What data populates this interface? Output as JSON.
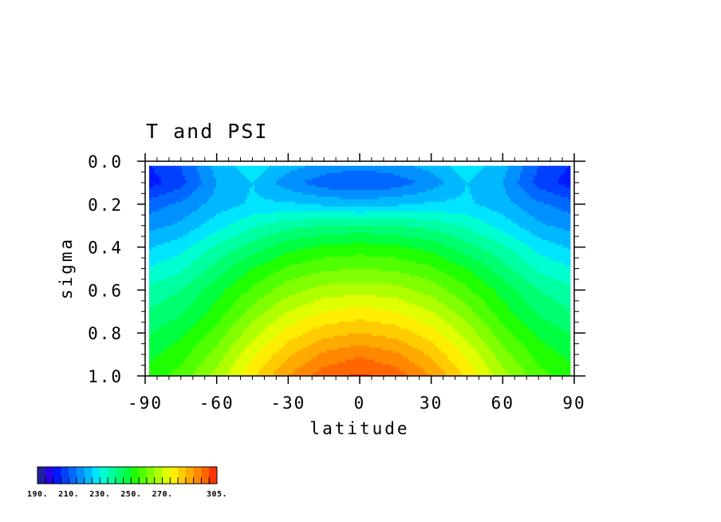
{
  "chart_data": {
    "type": "heatmap",
    "title": "T and PSI",
    "xlabel": "latitude",
    "ylabel": "sigma",
    "x": [
      -90,
      -75,
      -60,
      -45,
      -30,
      -15,
      0,
      15,
      30,
      45,
      60,
      75,
      90
    ],
    "y": [
      0.025,
      0.1,
      0.2,
      0.3,
      0.4,
      0.5,
      0.6,
      0.7,
      0.8,
      0.9,
      1.0
    ],
    "xlim": [
      -90,
      90
    ],
    "ylim": [
      0.0,
      1.0
    ],
    "y_inverted": true,
    "xticks": [
      "-90",
      "-60",
      "-30",
      "0",
      "30",
      "60",
      "90"
    ],
    "yticks": [
      "0.0",
      "0.2",
      "0.4",
      "0.6",
      "0.8",
      "1.0"
    ],
    "z": [
      [
        204,
        210,
        222,
        228,
        222,
        218,
        216,
        218,
        222,
        228,
        222,
        210,
        204
      ],
      [
        202,
        208,
        220,
        225,
        217,
        212,
        210,
        212,
        217,
        225,
        220,
        208,
        202
      ],
      [
        212,
        216,
        222,
        226,
        226,
        224,
        223,
        224,
        226,
        226,
        222,
        216,
        212
      ],
      [
        218,
        221,
        228,
        234,
        238,
        240,
        241,
        240,
        238,
        234,
        228,
        221,
        218
      ],
      [
        224,
        228,
        236,
        242,
        248,
        251,
        252,
        251,
        248,
        242,
        236,
        228,
        224
      ],
      [
        230,
        234,
        242,
        250,
        256,
        259,
        260,
        259,
        256,
        250,
        242,
        234,
        230
      ],
      [
        236,
        240,
        248,
        256,
        263,
        267,
        268,
        267,
        263,
        256,
        248,
        240,
        236
      ],
      [
        240,
        244,
        252,
        262,
        270,
        275,
        277,
        275,
        270,
        262,
        252,
        244,
        240
      ],
      [
        244,
        249,
        257,
        268,
        277,
        283,
        285,
        283,
        277,
        268,
        257,
        249,
        244
      ],
      [
        248,
        253,
        262,
        274,
        284,
        291,
        294,
        291,
        284,
        274,
        262,
        253,
        248
      ],
      [
        252,
        257,
        267,
        279,
        290,
        298,
        301,
        298,
        290,
        279,
        267,
        257,
        252
      ]
    ],
    "contour_levels": [
      190,
      195,
      200,
      205,
      210,
      215,
      220,
      225,
      230,
      235,
      240,
      245,
      250,
      255,
      260,
      265,
      270,
      275,
      280,
      285,
      290,
      295,
      300,
      305
    ],
    "colorbar": {
      "labels": [
        "190.",
        "210.",
        "230.",
        "250.",
        "270.",
        "305."
      ],
      "colors": [
        "#20209e",
        "#2a00e6",
        "#0018ff",
        "#0040ff",
        "#0068ff",
        "#0090ff",
        "#00b8ff",
        "#00e4ff",
        "#00ffd0",
        "#00ffa0",
        "#00ff70",
        "#00ff40",
        "#20ff00",
        "#50ff00",
        "#80ff00",
        "#b0ff00",
        "#e0ff00",
        "#ffee00",
        "#ffcc00",
        "#ffaa00",
        "#ff8800",
        "#ff6600",
        "#ff3300"
      ]
    }
  }
}
